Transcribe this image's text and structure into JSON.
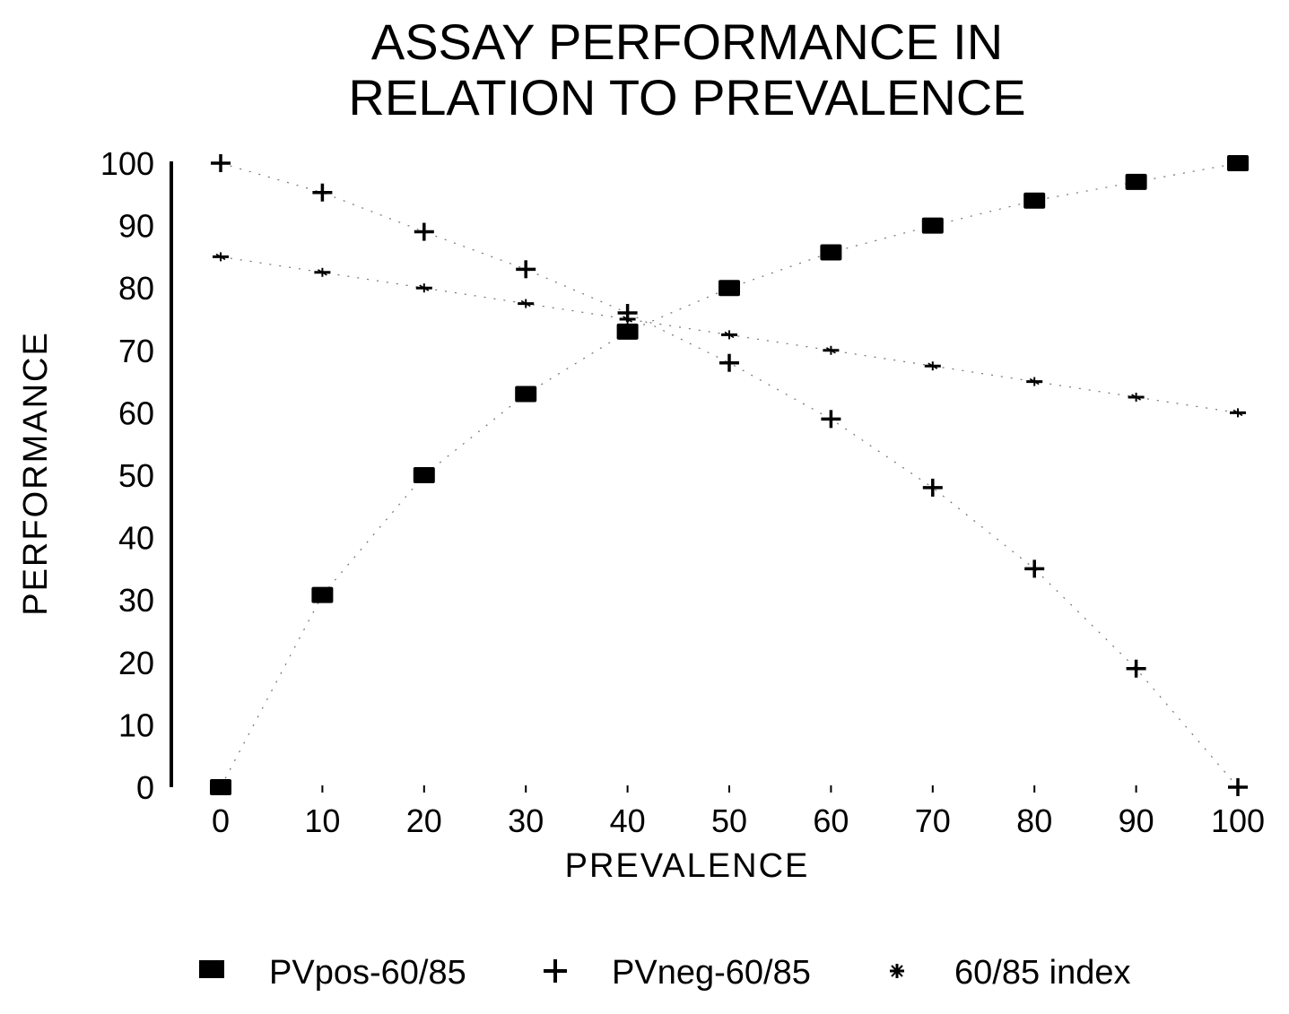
{
  "chart_data": {
    "type": "line",
    "title_lines": [
      "ASSAY PERFORMANCE IN",
      "RELATION TO PREVALENCE"
    ],
    "xlabel": "PREVALENCE",
    "ylabel": "PERFORMANCE",
    "x": [
      0,
      10,
      20,
      30,
      40,
      50,
      60,
      70,
      80,
      90,
      100
    ],
    "xticks": [
      "0",
      "10",
      "20",
      "30",
      "40",
      "50",
      "60",
      "70",
      "80",
      "90",
      "100"
    ],
    "yticks": [
      "0",
      "10",
      "20",
      "30",
      "40",
      "50",
      "60",
      "70",
      "80",
      "90",
      "100"
    ],
    "xlim": [
      0,
      100
    ],
    "ylim": [
      0,
      100
    ],
    "grid": false,
    "legend_position": "bottom",
    "series": [
      {
        "name": "PVpos-60/85",
        "marker": "square",
        "values": [
          0,
          30.8,
          50,
          63,
          73,
          80,
          85.7,
          90,
          94,
          97,
          100
        ]
      },
      {
        "name": "PVneg-60/85",
        "marker": "plus",
        "values": [
          100,
          95.3,
          89,
          83,
          76,
          68,
          59,
          48,
          35,
          19,
          0
        ]
      },
      {
        "name": "60/85 index",
        "marker": "star",
        "values": [
          85,
          82.5,
          80,
          77.5,
          75,
          72.5,
          70,
          67.5,
          65,
          62.5,
          60
        ]
      }
    ],
    "colors": {
      "ink": "#000000",
      "background": "#ffffff"
    }
  }
}
